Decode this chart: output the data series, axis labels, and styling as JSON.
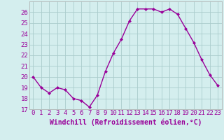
{
  "x": [
    0,
    1,
    2,
    3,
    4,
    5,
    6,
    7,
    8,
    9,
    10,
    11,
    12,
    13,
    14,
    15,
    16,
    17,
    18,
    19,
    20,
    21,
    22,
    23
  ],
  "y": [
    20,
    19,
    18.5,
    19,
    18.8,
    18,
    17.8,
    17.2,
    18.3,
    20.5,
    22.2,
    23.5,
    25.2,
    26.3,
    26.3,
    26.3,
    26,
    26.3,
    25.8,
    24.5,
    23.2,
    21.6,
    20.2,
    19.2
  ],
  "line_color": "#990099",
  "marker": "D",
  "marker_size": 2,
  "bg_color": "#d4eeee",
  "grid_color": "#aacccc",
  "xlabel": "Windchill (Refroidissement éolien,°C)",
  "xlabel_fontsize": 7,
  "tick_fontsize": 6.5,
  "ylim": [
    17,
    27
  ],
  "yticks": [
    17,
    18,
    19,
    20,
    21,
    22,
    23,
    24,
    25,
    26
  ],
  "xlim": [
    -0.5,
    23.5
  ],
  "xticks": [
    0,
    1,
    2,
    3,
    4,
    5,
    6,
    7,
    8,
    9,
    10,
    11,
    12,
    13,
    14,
    15,
    16,
    17,
    18,
    19,
    20,
    21,
    22,
    23
  ],
  "xtick_labels": [
    "0",
    "1",
    "2",
    "3",
    "4",
    "5",
    "6",
    "7",
    "8",
    "9",
    "10",
    "11",
    "12",
    "13",
    "14",
    "15",
    "16",
    "17",
    "18",
    "19",
    "20",
    "21",
    "22",
    "23"
  ],
  "border_color": "#aaaaaa",
  "linewidth": 1.0
}
